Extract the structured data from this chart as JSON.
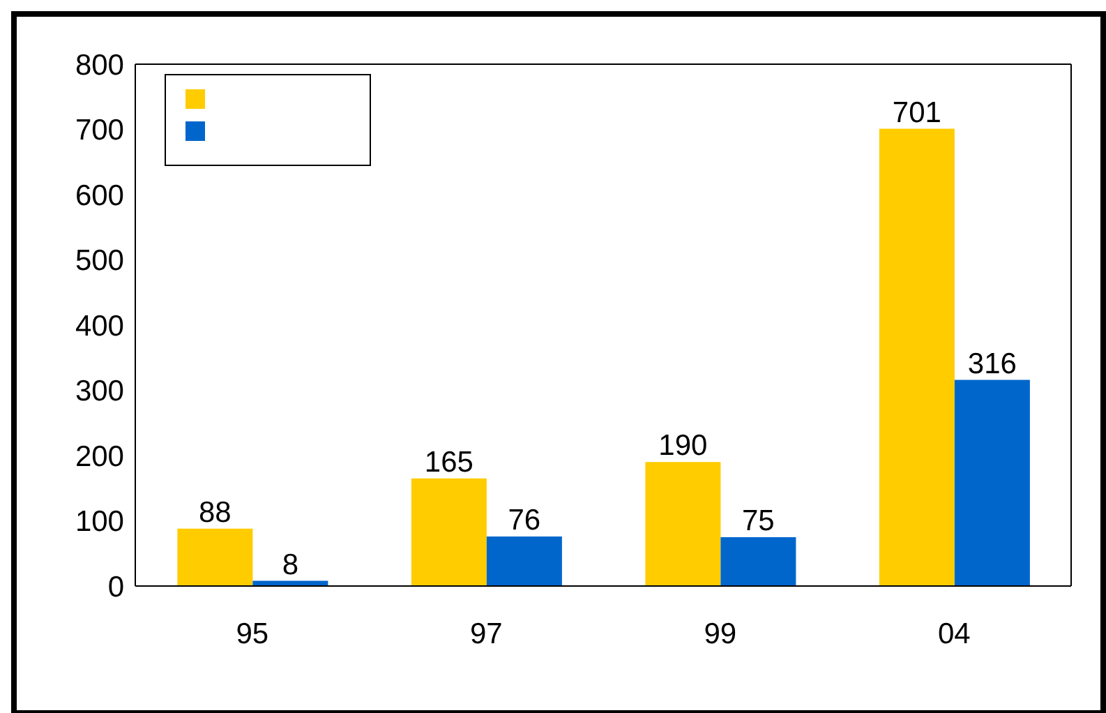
{
  "chart_data": {
    "type": "bar",
    "categories": [
      "95",
      "97",
      "99",
      "04"
    ],
    "series": [
      {
        "color": "#ffcc00",
        "values": [
          88,
          165,
          190,
          701
        ]
      },
      {
        "color": "#0066cc",
        "values": [
          8,
          76,
          75,
          316
        ]
      }
    ],
    "ylim": [
      0,
      800
    ],
    "yticks": [
      0,
      100,
      200,
      300,
      400,
      500,
      600,
      700,
      800
    ],
    "data_labels": true,
    "grid": false
  }
}
